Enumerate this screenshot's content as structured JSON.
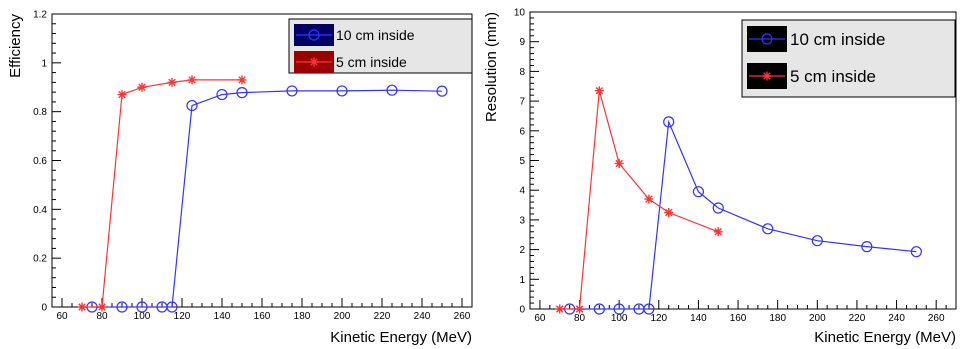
{
  "chart_data": [
    {
      "type": "line",
      "xlabel": "Kinetic Energy (MeV)",
      "ylabel": "Efficiency",
      "xlim": [
        55,
        265
      ],
      "ylim": [
        0,
        1.2
      ],
      "xticks": [
        60,
        80,
        100,
        120,
        140,
        160,
        180,
        200,
        220,
        240,
        260
      ],
      "yticks": [
        0,
        0.2,
        0.4,
        0.6,
        0.8,
        1,
        1.2
      ],
      "legend_position": "top-right",
      "series": [
        {
          "name": "10 cm inside",
          "color": "#3333ff",
          "marker": "circle",
          "x": [
            75,
            90,
            100,
            110,
            115,
            125,
            140,
            150,
            175,
            200,
            225,
            250
          ],
          "y": [
            0,
            0,
            0,
            0,
            0,
            0.825,
            0.87,
            0.878,
            0.885,
            0.885,
            0.888,
            0.884
          ]
        },
        {
          "name": "5 cm inside",
          "color": "#ff3333",
          "marker": "star",
          "x": [
            70,
            80,
            90,
            100,
            115,
            125,
            150
          ],
          "y": [
            0,
            0,
            0.87,
            0.9,
            0.92,
            0.93,
            0.93
          ]
        }
      ]
    },
    {
      "type": "line",
      "xlabel": "Kinetic Energy (MeV)",
      "ylabel": "Resolution (mm)",
      "xlim": [
        55,
        270
      ],
      "ylim": [
        0,
        10
      ],
      "xticks": [
        60,
        80,
        100,
        120,
        140,
        160,
        180,
        200,
        220,
        240,
        260
      ],
      "yticks": [
        0,
        1,
        2,
        3,
        4,
        5,
        6,
        7,
        8,
        9,
        10
      ],
      "legend_position": "top-right",
      "series": [
        {
          "name": "10 cm inside",
          "color": "#3333ff",
          "marker": "circle",
          "x": [
            75,
            90,
            100,
            110,
            115,
            125,
            140,
            150,
            175,
            200,
            225,
            250
          ],
          "y": [
            0,
            0,
            0,
            0,
            0,
            6.3,
            3.95,
            3.4,
            2.7,
            2.3,
            2.1,
            1.93
          ]
        },
        {
          "name": "5 cm inside",
          "color": "#ff3333",
          "marker": "star",
          "x": [
            70,
            80,
            90,
            100,
            115,
            125,
            150
          ],
          "y": [
            0,
            0,
            7.35,
            4.9,
            3.7,
            3.25,
            2.6
          ]
        }
      ]
    }
  ]
}
